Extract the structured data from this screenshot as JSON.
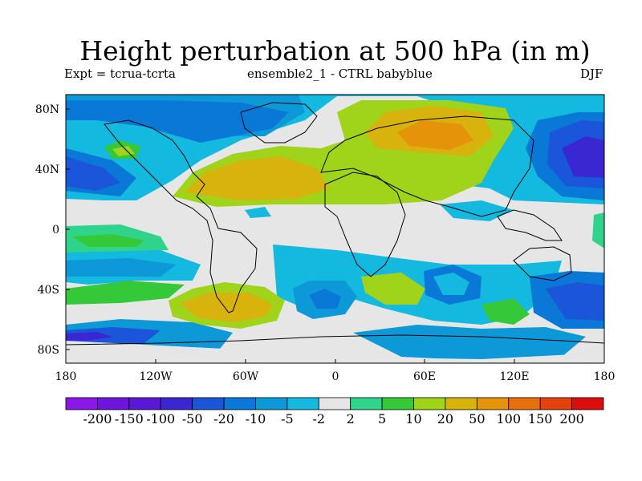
{
  "title": "Height perturbation at 500 hPa (in m)",
  "subtitle_left": "Expt = tcrua-tcrta",
  "subtitle_center": "ensemble2_1 - CTRL babyblue",
  "subtitle_right": "DJF",
  "lat_ticks": [
    "80N",
    "40N",
    "0",
    "40S",
    "80S"
  ],
  "lon_ticks": [
    "180",
    "120W",
    "60W",
    "0",
    "60E",
    "120E",
    "180"
  ],
  "colorbar": {
    "labels": [
      "-200",
      "-150",
      "-100",
      "-50",
      "-20",
      "-10",
      "-5",
      "-2",
      "2",
      "5",
      "10",
      "20",
      "50",
      "100",
      "150",
      "200"
    ],
    "colors": [
      "#8a17e8",
      "#6f16dc",
      "#5a17d6",
      "#3a27d2",
      "#1b55d9",
      "#0a78d6",
      "#0d98d8",
      "#13b9de",
      "#e6e6e6",
      "#2fd48a",
      "#35c93a",
      "#9fd41a",
      "#d8b20d",
      "#e5940a",
      "#e7700c",
      "#e4410e",
      "#de0d0d"
    ]
  },
  "colors": {
    "ocean_neutral": "#e6e6e6",
    "coastline": "#000000"
  }
}
